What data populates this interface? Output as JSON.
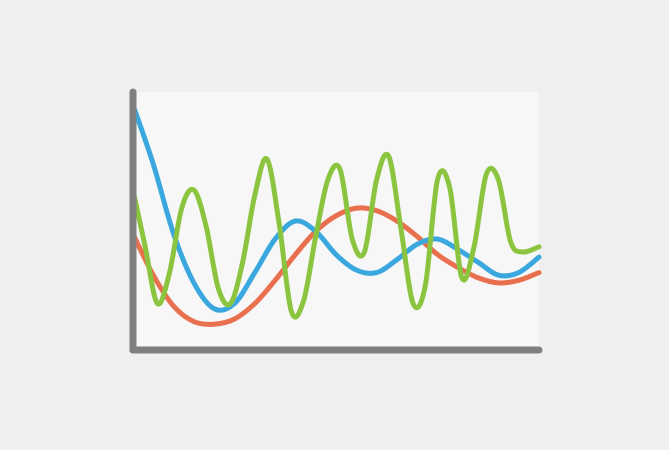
{
  "chart_data": {
    "type": "line",
    "title": "",
    "xlabel": "",
    "ylabel": "",
    "xlim": [
      0,
      100
    ],
    "ylim": [
      0,
      100
    ],
    "grid": false,
    "legend": "none",
    "axis_color": "#7d7f81",
    "plot_background": "#f7f7f7",
    "page_background": "#efefef",
    "series": [
      {
        "color": "#e9704f",
        "x": [
          0,
          5,
          10,
          15,
          20,
          25,
          30,
          35,
          40,
          45,
          50,
          55,
          60,
          65,
          70,
          75,
          80,
          85,
          90,
          95,
          100
        ],
        "y": [
          45,
          29,
          17,
          11,
          10,
          12,
          18,
          27,
          37,
          46,
          52,
          55,
          54,
          50,
          44,
          37,
          32,
          28,
          26,
          27,
          30
        ]
      },
      {
        "color": "#3aa8de",
        "x": [
          0,
          5,
          10,
          15,
          20,
          25,
          30,
          35,
          40,
          45,
          50,
          55,
          60,
          65,
          70,
          75,
          80,
          85,
          90,
          95,
          100
        ],
        "y": [
          95,
          72,
          45,
          26,
          16,
          18,
          30,
          43,
          50,
          46,
          37,
          31,
          30,
          35,
          41,
          43,
          39,
          34,
          29,
          30,
          36
        ]
      },
      {
        "color": "#8bc540",
        "x": [
          0,
          3,
          6,
          9,
          12,
          15,
          18,
          21,
          24,
          27,
          30,
          33,
          36,
          39,
          42,
          45,
          48,
          51,
          54,
          57,
          60,
          63,
          66,
          69,
          72,
          75,
          78,
          81,
          84,
          87,
          90,
          93,
          96,
          100
        ],
        "y": [
          62,
          40,
          18,
          30,
          55,
          62,
          48,
          24,
          18,
          34,
          60,
          74,
          49,
          15,
          19,
          44,
          66,
          70,
          43,
          38,
          66,
          75,
          47,
          18,
          25,
          66,
          63,
          28,
          40,
          68,
          66,
          42,
          38,
          40
        ]
      }
    ]
  }
}
